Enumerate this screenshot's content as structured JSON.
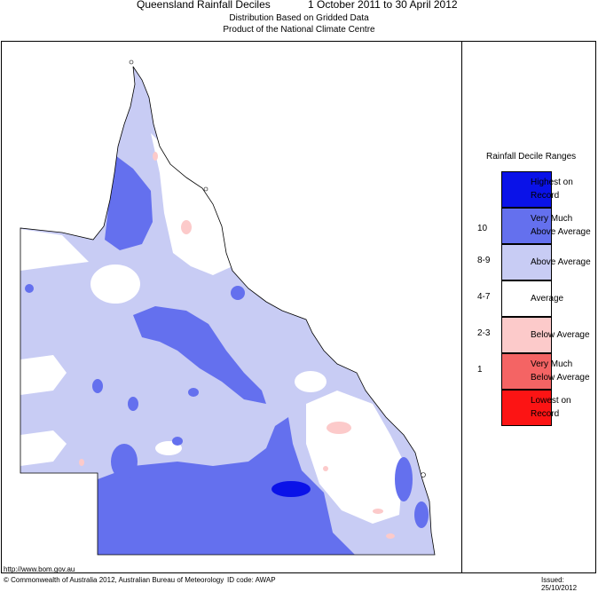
{
  "header": {
    "title": "Queensland Rainfall Deciles",
    "period": "1 October 2011 to 30 April 2012",
    "subtitle1": "Distribution Based on Gridded Data",
    "subtitle2": "Product of the National Climate Centre"
  },
  "legend": {
    "title": "Rainfall Decile Ranges",
    "items": [
      {
        "line1": "Highest on",
        "line2": "Record",
        "decile": "",
        "color": "#0a12e8"
      },
      {
        "line1": "Very Much",
        "line2": "Above Average",
        "decile": "10",
        "color": "#6470ee"
      },
      {
        "line1": "Above Average",
        "line2": "",
        "decile": "8-9",
        "color": "#c8ccf4"
      },
      {
        "line1": "Average",
        "line2": "",
        "decile": "4-7",
        "color": "#ffffff"
      },
      {
        "line1": "Below Average",
        "line2": "",
        "decile": "2-3",
        "color": "#fccaca"
      },
      {
        "line1": "Very Much",
        "line2": "Below Average",
        "decile": "1",
        "color": "#f46464"
      },
      {
        "line1": "Lowest on",
        "line2": "Record",
        "decile": "",
        "color": "#fc1414"
      }
    ]
  },
  "map": {
    "region": "Queensland"
  },
  "footer": {
    "url": "http://www.bom.gov.au",
    "copyright": "© Commonwealth of Australia 2012, Australian Bureau of Meteorology",
    "id_code": "ID code: AWAP",
    "issued": "Issued: 25/10/2012"
  }
}
